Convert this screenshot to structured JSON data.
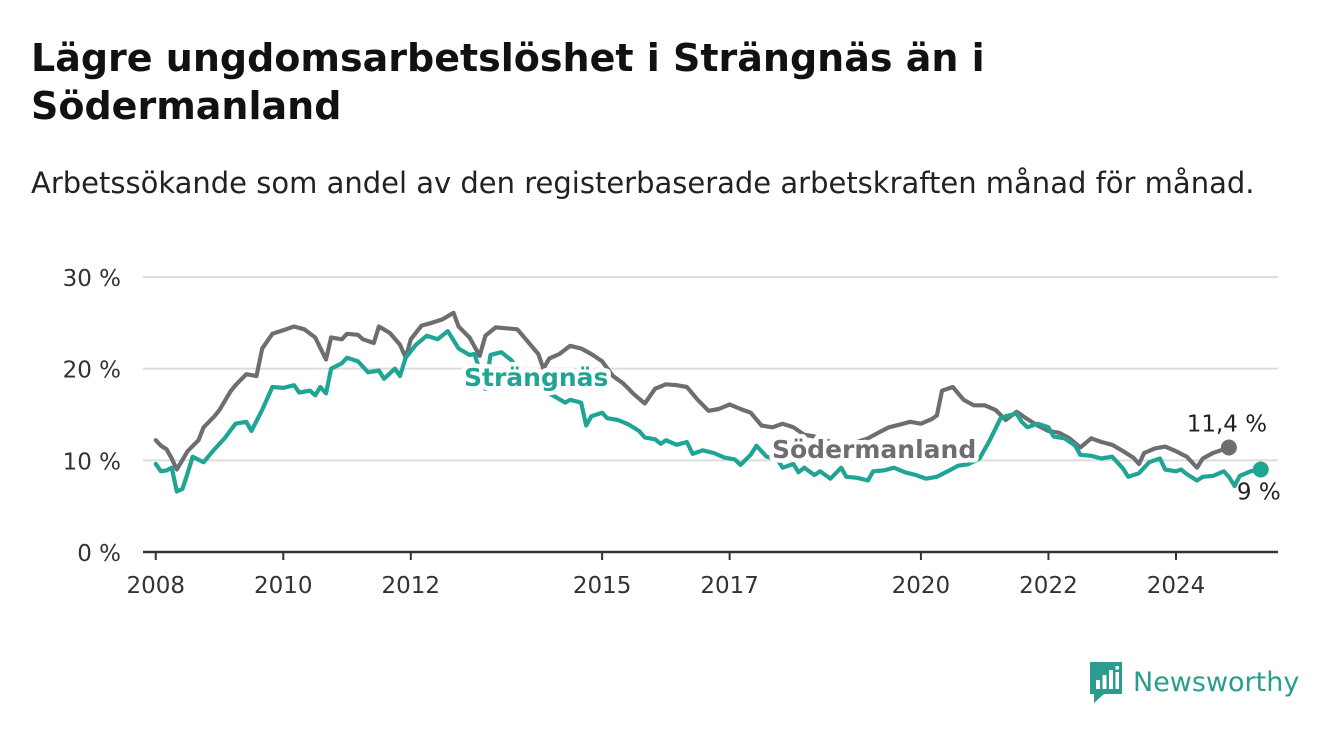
{
  "title": "Lägre ungdomsarbetslöshet i Strängnäs än i Södermanland",
  "subtitle": "Arbetssökande som andel av den registerbaserade arbetskraften månad för månad.",
  "brand": {
    "name": "Newsworthy",
    "logo_icon": "bar-chart-speech-bubble-icon",
    "color": "#2a9d8f"
  },
  "chart_data": {
    "type": "line",
    "xlabel": "",
    "ylabel": "",
    "ylim": [
      0,
      30
    ],
    "y_ticks": [
      0,
      10,
      20,
      30
    ],
    "y_tick_labels": [
      "0 %",
      "10 %",
      "20 %",
      "30 %"
    ],
    "x_ticks": [
      2008,
      2010,
      2012,
      2015,
      2017,
      2020,
      2022,
      2024
    ],
    "x_tick_labels": [
      "2008",
      "2010",
      "2012",
      "2015",
      "2017",
      "2020",
      "2022",
      "2024"
    ],
    "grid": true,
    "legend": "inline labels",
    "series": [
      {
        "name": "Södermanland",
        "color": "#6e6d72",
        "end_label": "11,4 %",
        "points": [
          [
            2008.0,
            12.2
          ],
          [
            2008.08,
            11.6
          ],
          [
            2008.17,
            11.2
          ],
          [
            2008.25,
            10.2
          ],
          [
            2008.33,
            9.0
          ],
          [
            2008.5,
            11.0
          ],
          [
            2008.67,
            12.2
          ],
          [
            2008.75,
            13.6
          ],
          [
            2008.92,
            14.8
          ],
          [
            2009.0,
            15.5
          ],
          [
            2009.17,
            17.5
          ],
          [
            2009.25,
            18.2
          ],
          [
            2009.42,
            19.4
          ],
          [
            2009.58,
            19.2
          ],
          [
            2009.67,
            22.2
          ],
          [
            2009.83,
            23.8
          ],
          [
            2010.0,
            24.2
          ],
          [
            2010.17,
            24.6
          ],
          [
            2010.33,
            24.3
          ],
          [
            2010.5,
            23.4
          ],
          [
            2010.67,
            21.0
          ],
          [
            2010.75,
            23.4
          ],
          [
            2010.92,
            23.2
          ],
          [
            2011.0,
            23.8
          ],
          [
            2011.17,
            23.7
          ],
          [
            2011.25,
            23.2
          ],
          [
            2011.42,
            22.8
          ],
          [
            2011.5,
            24.6
          ],
          [
            2011.67,
            23.9
          ],
          [
            2011.83,
            22.6
          ],
          [
            2011.92,
            21.2
          ],
          [
            2012.0,
            23.2
          ],
          [
            2012.17,
            24.7
          ],
          [
            2012.33,
            25.0
          ],
          [
            2012.5,
            25.4
          ],
          [
            2012.67,
            26.1
          ],
          [
            2012.75,
            24.6
          ],
          [
            2012.92,
            23.4
          ],
          [
            2013.08,
            21.4
          ],
          [
            2013.17,
            23.6
          ],
          [
            2013.33,
            24.5
          ],
          [
            2013.5,
            24.4
          ],
          [
            2013.67,
            24.3
          ],
          [
            2013.83,
            23.0
          ],
          [
            2014.0,
            21.6
          ],
          [
            2014.08,
            20.0
          ],
          [
            2014.17,
            21.1
          ],
          [
            2014.33,
            21.6
          ],
          [
            2014.5,
            22.5
          ],
          [
            2014.67,
            22.2
          ],
          [
            2014.83,
            21.6
          ],
          [
            2015.0,
            20.8
          ],
          [
            2015.17,
            19.2
          ],
          [
            2015.33,
            18.4
          ],
          [
            2015.5,
            17.2
          ],
          [
            2015.67,
            16.2
          ],
          [
            2015.83,
            17.8
          ],
          [
            2016.0,
            18.3
          ],
          [
            2016.17,
            18.2
          ],
          [
            2016.33,
            18.0
          ],
          [
            2016.5,
            16.6
          ],
          [
            2016.67,
            15.4
          ],
          [
            2016.83,
            15.6
          ],
          [
            2017.0,
            16.1
          ],
          [
            2017.17,
            15.6
          ],
          [
            2017.33,
            15.2
          ],
          [
            2017.5,
            13.8
          ],
          [
            2017.67,
            13.6
          ],
          [
            2017.83,
            14.0
          ],
          [
            2018.0,
            13.6
          ],
          [
            2018.17,
            12.8
          ],
          [
            2018.33,
            12.6
          ],
          [
            2018.5,
            12.2
          ],
          [
            2018.67,
            11.8
          ],
          [
            2018.83,
            11.8
          ],
          [
            2019.0,
            12.0
          ],
          [
            2019.17,
            12.4
          ],
          [
            2019.33,
            13.0
          ],
          [
            2019.5,
            13.6
          ],
          [
            2019.67,
            13.9
          ],
          [
            2019.83,
            14.2
          ],
          [
            2020.0,
            14.0
          ],
          [
            2020.17,
            14.5
          ],
          [
            2020.25,
            14.9
          ],
          [
            2020.33,
            17.6
          ],
          [
            2020.5,
            18.0
          ],
          [
            2020.67,
            16.6
          ],
          [
            2020.83,
            16.0
          ],
          [
            2021.0,
            16.0
          ],
          [
            2021.17,
            15.5
          ],
          [
            2021.33,
            14.4
          ],
          [
            2021.5,
            15.3
          ],
          [
            2021.67,
            14.5
          ],
          [
            2021.83,
            13.8
          ],
          [
            2022.0,
            13.2
          ],
          [
            2022.17,
            13.0
          ],
          [
            2022.33,
            12.4
          ],
          [
            2022.5,
            11.4
          ],
          [
            2022.67,
            12.4
          ],
          [
            2022.83,
            12.0
          ],
          [
            2023.0,
            11.7
          ],
          [
            2023.17,
            11.0
          ],
          [
            2023.33,
            10.3
          ],
          [
            2023.42,
            9.6
          ],
          [
            2023.5,
            10.8
          ],
          [
            2023.67,
            11.3
          ],
          [
            2023.83,
            11.5
          ],
          [
            2024.0,
            11.0
          ],
          [
            2024.17,
            10.4
          ],
          [
            2024.33,
            9.2
          ],
          [
            2024.42,
            10.2
          ],
          [
            2024.58,
            10.8
          ],
          [
            2024.75,
            11.2
          ],
          [
            2024.83,
            11.4
          ]
        ]
      },
      {
        "name": "Strängnäs",
        "color": "#20a595",
        "end_label": "9 %",
        "points": [
          [
            2008.0,
            9.6
          ],
          [
            2008.08,
            8.8
          ],
          [
            2008.17,
            8.9
          ],
          [
            2008.25,
            9.2
          ],
          [
            2008.33,
            6.6
          ],
          [
            2008.42,
            6.9
          ],
          [
            2008.5,
            8.6
          ],
          [
            2008.58,
            10.4
          ],
          [
            2008.75,
            9.8
          ],
          [
            2008.92,
            11.2
          ],
          [
            2009.08,
            12.4
          ],
          [
            2009.25,
            14.0
          ],
          [
            2009.42,
            14.2
          ],
          [
            2009.5,
            13.2
          ],
          [
            2009.67,
            15.5
          ],
          [
            2009.83,
            18.0
          ],
          [
            2010.0,
            17.9
          ],
          [
            2010.17,
            18.2
          ],
          [
            2010.25,
            17.4
          ],
          [
            2010.42,
            17.6
          ],
          [
            2010.5,
            17.1
          ],
          [
            2010.58,
            18.0
          ],
          [
            2010.67,
            17.3
          ],
          [
            2010.75,
            20.0
          ],
          [
            2010.92,
            20.6
          ],
          [
            2011.0,
            21.2
          ],
          [
            2011.17,
            20.8
          ],
          [
            2011.33,
            19.6
          ],
          [
            2011.5,
            19.8
          ],
          [
            2011.58,
            18.9
          ],
          [
            2011.75,
            20.0
          ],
          [
            2011.83,
            19.2
          ],
          [
            2011.92,
            21.2
          ],
          [
            2012.08,
            22.6
          ],
          [
            2012.25,
            23.6
          ],
          [
            2012.42,
            23.2
          ],
          [
            2012.58,
            24.1
          ],
          [
            2012.75,
            22.2
          ],
          [
            2012.92,
            21.5
          ],
          [
            2013.0,
            21.6
          ],
          [
            2013.08,
            19.8
          ],
          [
            2013.17,
            17.8
          ],
          [
            2013.25,
            21.5
          ],
          [
            2013.42,
            21.8
          ],
          [
            2013.58,
            20.9
          ],
          [
            2013.75,
            19.2
          ],
          [
            2013.92,
            18.4
          ],
          [
            2014.08,
            17.6
          ],
          [
            2014.25,
            17.0
          ],
          [
            2014.42,
            16.3
          ],
          [
            2014.5,
            16.6
          ],
          [
            2014.67,
            16.3
          ],
          [
            2014.75,
            13.8
          ],
          [
            2014.83,
            14.8
          ],
          [
            2015.0,
            15.2
          ],
          [
            2015.08,
            14.6
          ],
          [
            2015.25,
            14.4
          ],
          [
            2015.42,
            13.9
          ],
          [
            2015.58,
            13.2
          ],
          [
            2015.67,
            12.5
          ],
          [
            2015.83,
            12.3
          ],
          [
            2015.92,
            11.8
          ],
          [
            2016.0,
            12.2
          ],
          [
            2016.17,
            11.7
          ],
          [
            2016.33,
            12.0
          ],
          [
            2016.42,
            10.7
          ],
          [
            2016.58,
            11.1
          ],
          [
            2016.75,
            10.8
          ],
          [
            2016.92,
            10.3
          ],
          [
            2017.08,
            10.1
          ],
          [
            2017.17,
            9.5
          ],
          [
            2017.33,
            10.6
          ],
          [
            2017.42,
            11.6
          ],
          [
            2017.58,
            10.4
          ],
          [
            2017.75,
            10.1
          ],
          [
            2017.83,
            9.2
          ],
          [
            2018.0,
            9.6
          ],
          [
            2018.08,
            8.7
          ],
          [
            2018.17,
            9.2
          ],
          [
            2018.33,
            8.4
          ],
          [
            2018.42,
            8.8
          ],
          [
            2018.58,
            8.0
          ],
          [
            2018.75,
            9.2
          ],
          [
            2018.83,
            8.2
          ],
          [
            2019.0,
            8.1
          ],
          [
            2019.17,
            7.8
          ],
          [
            2019.25,
            8.8
          ],
          [
            2019.42,
            8.9
          ],
          [
            2019.58,
            9.2
          ],
          [
            2019.75,
            8.7
          ],
          [
            2019.92,
            8.4
          ],
          [
            2020.08,
            8.0
          ],
          [
            2020.25,
            8.2
          ],
          [
            2020.42,
            8.8
          ],
          [
            2020.58,
            9.4
          ],
          [
            2020.75,
            9.6
          ],
          [
            2020.92,
            10.2
          ],
          [
            2021.08,
            12.2
          ],
          [
            2021.25,
            14.6
          ],
          [
            2021.33,
            14.8
          ],
          [
            2021.5,
            15.1
          ],
          [
            2021.58,
            14.2
          ],
          [
            2021.67,
            13.6
          ],
          [
            2021.83,
            14.0
          ],
          [
            2022.0,
            13.6
          ],
          [
            2022.08,
            12.6
          ],
          [
            2022.25,
            12.4
          ],
          [
            2022.42,
            11.6
          ],
          [
            2022.5,
            10.6
          ],
          [
            2022.67,
            10.5
          ],
          [
            2022.83,
            10.2
          ],
          [
            2023.0,
            10.4
          ],
          [
            2023.17,
            9.1
          ],
          [
            2023.25,
            8.2
          ],
          [
            2023.42,
            8.6
          ],
          [
            2023.58,
            9.8
          ],
          [
            2023.75,
            10.2
          ],
          [
            2023.83,
            9.0
          ],
          [
            2024.0,
            8.8
          ],
          [
            2024.08,
            9.0
          ],
          [
            2024.17,
            8.5
          ],
          [
            2024.33,
            7.8
          ],
          [
            2024.42,
            8.2
          ],
          [
            2024.58,
            8.3
          ],
          [
            2024.75,
            8.8
          ],
          [
            2024.83,
            8.2
          ],
          [
            2024.92,
            7.2
          ],
          [
            2025.0,
            8.3
          ],
          [
            2025.17,
            8.8
          ],
          [
            2025.33,
            9.0
          ]
        ]
      }
    ],
    "inline_labels": [
      "Strängnäs",
      "Södermanland"
    ]
  }
}
